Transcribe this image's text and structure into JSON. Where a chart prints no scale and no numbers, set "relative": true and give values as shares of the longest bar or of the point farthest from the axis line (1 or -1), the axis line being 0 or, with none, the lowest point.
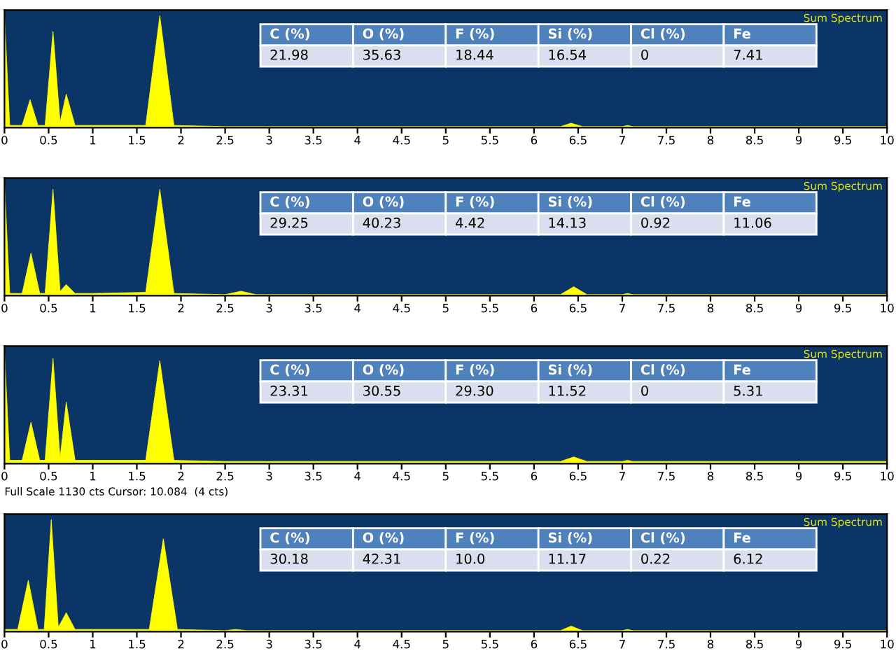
{
  "chart_data": [
    {
      "type": "area",
      "relative": true,
      "xlim": [
        0,
        10
      ],
      "xticks": [
        0,
        0.5,
        1,
        1.5,
        2,
        2.5,
        3,
        3.5,
        4,
        4.5,
        5,
        5.5,
        6,
        6.5,
        7,
        7.5,
        8,
        8.5,
        9,
        9.5,
        10
      ],
      "tick_labels": "x",
      "grid": false,
      "legend": false,
      "x": [
        0,
        0.06,
        0.2,
        0.29,
        0.38,
        0.46,
        0.55,
        0.63,
        0.7,
        0.8,
        1.0,
        1.6,
        1.76,
        1.92,
        2.5,
        3,
        4,
        5,
        6,
        6.3,
        6.42,
        6.55,
        7,
        7.06,
        7.12,
        8,
        9,
        10
      ],
      "series": [
        {
          "color": "#ffff00",
          "values": [
            1,
            0.02,
            0.02,
            0.25,
            0.02,
            0.02,
            0.86,
            0.05,
            0.3,
            0.02,
            0.02,
            0.02,
            1.0,
            0.02,
            0.01,
            0.01,
            0.01,
            0.01,
            0.01,
            0.01,
            0.04,
            0.01,
            0.01,
            0.02,
            0.01,
            0.01,
            0.01,
            0.01
          ]
        }
      ],
      "annotations": [
        "Sum Spectrum",
        "C (%)",
        "O (%)",
        "F (%)",
        "Si (%)",
        "Cl (%)",
        "Fe",
        "21.98",
        "35.63",
        "18.44",
        "16.54",
        "0",
        "7.41"
      ]
    },
    {
      "type": "area",
      "relative": true,
      "xlim": [
        0,
        10
      ],
      "xticks": [
        0,
        0.5,
        1,
        1.5,
        2,
        2.5,
        3,
        3.5,
        4,
        4.5,
        5,
        5.5,
        6,
        6.5,
        7,
        7.5,
        8,
        8.5,
        9,
        9.5,
        10
      ],
      "tick_labels": "x",
      "grid": false,
      "legend": false,
      "x": [
        0,
        0.06,
        0.2,
        0.3,
        0.4,
        0.46,
        0.55,
        0.63,
        0.7,
        0.8,
        1.0,
        1.6,
        1.76,
        1.92,
        2.5,
        2.68,
        2.85,
        3,
        4,
        5,
        6,
        6.3,
        6.45,
        6.6,
        7,
        7.06,
        7.12,
        8,
        9,
        10
      ],
      "series": [
        {
          "color": "#ffff00",
          "values": [
            1,
            0.02,
            0.02,
            0.38,
            0.02,
            0.02,
            0.95,
            0.04,
            0.1,
            0.02,
            0.02,
            0.03,
            0.95,
            0.02,
            0.01,
            0.04,
            0.01,
            0.01,
            0.01,
            0.01,
            0.01,
            0.01,
            0.08,
            0.01,
            0.01,
            0.02,
            0.01,
            0.01,
            0.01,
            0.01
          ]
        }
      ],
      "annotations": [
        "Sum Spectrum",
        "C (%)",
        "O (%)",
        "F (%)",
        "Si (%)",
        "Cl (%)",
        "Fe",
        "29.25",
        "40.23",
        "4.42",
        "14.13",
        "0.92",
        "11.06"
      ]
    },
    {
      "type": "area",
      "relative": true,
      "xlim": [
        0,
        10
      ],
      "xticks": [
        0,
        0.5,
        1,
        1.5,
        2,
        2.5,
        3,
        3.5,
        4,
        4.5,
        5,
        5.5,
        6,
        6.5,
        7,
        7.5,
        8,
        8.5,
        9,
        9.5,
        10
      ],
      "tick_labels": "x",
      "grid": false,
      "legend": false,
      "x": [
        0,
        0.06,
        0.2,
        0.3,
        0.4,
        0.46,
        0.55,
        0.63,
        0.7,
        0.8,
        1.0,
        1.6,
        1.76,
        1.92,
        2.5,
        3,
        4,
        5,
        6,
        6.3,
        6.45,
        6.6,
        7,
        7.06,
        7.12,
        8,
        9,
        10
      ],
      "series": [
        {
          "color": "#ffff00",
          "values": [
            1,
            0.03,
            0.03,
            0.37,
            0.03,
            0.03,
            0.94,
            0.05,
            0.55,
            0.03,
            0.03,
            0.03,
            0.92,
            0.03,
            0.02,
            0.02,
            0.02,
            0.02,
            0.02,
            0.02,
            0.06,
            0.02,
            0.02,
            0.03,
            0.02,
            0.02,
            0.02,
            0.02
          ]
        }
      ],
      "annotations": [
        "Sum Spectrum",
        "C (%)",
        "O (%)",
        "F (%)",
        "Si (%)",
        "Cl (%)",
        "Fe",
        "23.31",
        "30.55",
        "29.30",
        "11.52",
        "0",
        "5.31",
        "Full Scale 1130 cts Cursor: 10.084  (4 cts)"
      ]
    },
    {
      "type": "area",
      "relative": true,
      "xlim": [
        0,
        10
      ],
      "xticks": [
        0,
        0.5,
        1,
        1.5,
        2,
        2.5,
        3,
        3.5,
        4,
        4.5,
        5,
        5.5,
        6,
        6.5,
        7,
        7.5,
        8,
        8.5,
        9,
        9.5,
        10
      ],
      "tick_labels": "x",
      "grid": false,
      "legend": false,
      "x": [
        0,
        0.15,
        0.27,
        0.38,
        0.45,
        0.53,
        0.61,
        0.7,
        0.8,
        1.0,
        1.5,
        1.64,
        1.8,
        1.96,
        2.5,
        2.62,
        2.75,
        3,
        4,
        5,
        6,
        6.3,
        6.42,
        6.55,
        7,
        7.06,
        7.12,
        8,
        9,
        10
      ],
      "series": [
        {
          "color": "#ffff00",
          "values": [
            0.02,
            0.02,
            0.46,
            0.02,
            0.02,
            1.0,
            0.04,
            0.17,
            0.02,
            0.02,
            0.02,
            0.02,
            0.83,
            0.02,
            0.01,
            0.02,
            0.01,
            0.01,
            0.01,
            0.01,
            0.01,
            0.01,
            0.05,
            0.01,
            0.01,
            0.02,
            0.01,
            0.01,
            0.01,
            0.01
          ]
        }
      ],
      "annotations": [
        "Sum Spectrum",
        "C (%)",
        "O (%)",
        "F (%)",
        "Si (%)",
        "Cl (%)",
        "Fe",
        "30.18",
        "42.31",
        "10.0",
        "11.17",
        "0.22",
        "6.12"
      ]
    }
  ]
}
